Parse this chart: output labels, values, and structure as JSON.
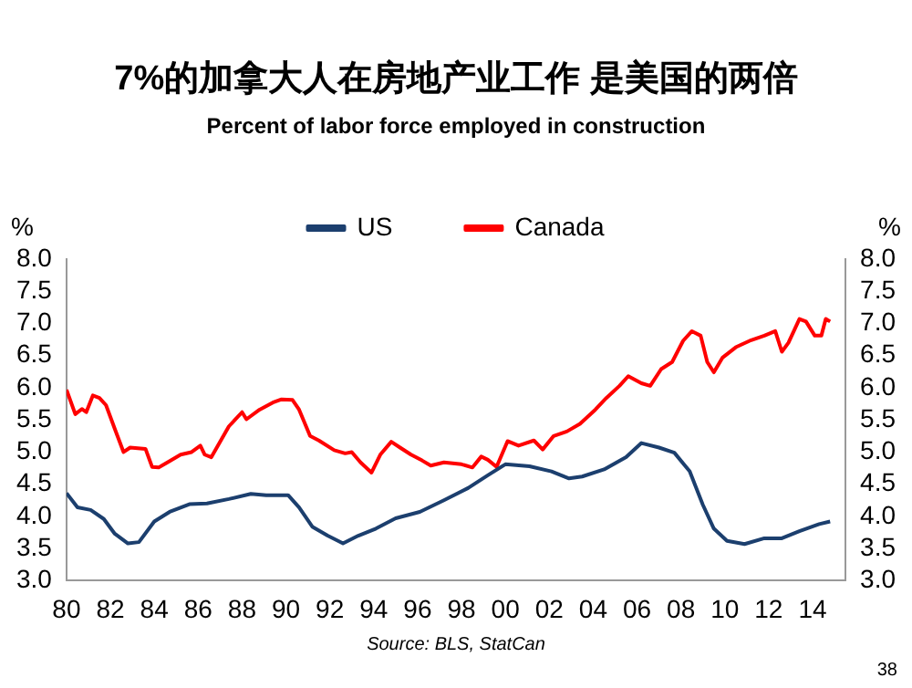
{
  "chart_data": {
    "type": "line",
    "title": "7%的加拿大人在房地产业工作 是美国的两倍",
    "subtitle": "Percent of labor force employed in construction",
    "ylabel": "%",
    "y2label": "%",
    "annotations": [
      "Source: BLS, StatCan",
      "38"
    ],
    "legend": "top",
    "marker": "none",
    "xlim": [
      1980,
      2015.5
    ],
    "xticks": [
      {
        "value": 1980,
        "label": "80"
      },
      {
        "value": 1982,
        "label": "82"
      },
      {
        "value": 1984,
        "label": "84"
      },
      {
        "value": 1986,
        "label": "86"
      },
      {
        "value": 1988,
        "label": "88"
      },
      {
        "value": 1990,
        "label": "90"
      },
      {
        "value": 1992,
        "label": "92"
      },
      {
        "value": 1994,
        "label": "94"
      },
      {
        "value": 1996,
        "label": "96"
      },
      {
        "value": 1998,
        "label": "98"
      },
      {
        "value": 2000,
        "label": "00"
      },
      {
        "value": 2002,
        "label": "02"
      },
      {
        "value": 2004,
        "label": "04"
      },
      {
        "value": 2006,
        "label": "06"
      },
      {
        "value": 2008,
        "label": "08"
      },
      {
        "value": 2010,
        "label": "10"
      },
      {
        "value": 2012,
        "label": "12"
      },
      {
        "value": 2014,
        "label": "14"
      }
    ],
    "ylim": [
      3,
      8
    ],
    "yticks": [
      {
        "value": 3,
        "label": "3.0"
      },
      {
        "value": 3.5,
        "label": "3.5"
      },
      {
        "value": 4,
        "label": "4.0"
      },
      {
        "value": 4.5,
        "label": "4.5"
      },
      {
        "value": 5,
        "label": "5.0"
      },
      {
        "value": 5.5,
        "label": "5.5"
      },
      {
        "value": 6,
        "label": "6.0"
      },
      {
        "value": 6.5,
        "label": "6.5"
      },
      {
        "value": 7,
        "label": "7.0"
      },
      {
        "value": 7.5,
        "label": "7.5"
      },
      {
        "value": 8,
        "label": "8.0"
      }
    ],
    "y2lim": [
      3,
      8
    ],
    "y2ticks": [
      {
        "value": 3,
        "label": "3.0"
      },
      {
        "value": 3.5,
        "label": "3.5"
      },
      {
        "value": 4,
        "label": "4.0"
      },
      {
        "value": 4.5,
        "label": "4.5"
      },
      {
        "value": 5,
        "label": "5.0"
      },
      {
        "value": 5.5,
        "label": "5.5"
      },
      {
        "value": 6,
        "label": "6.0"
      },
      {
        "value": 6.5,
        "label": "6.5"
      },
      {
        "value": 7,
        "label": "7.0"
      },
      {
        "value": 7.5,
        "label": "7.5"
      },
      {
        "value": 8,
        "label": "8.0"
      }
    ],
    "series": [
      {
        "name": "US",
        "color": "#1c3f6e",
        "x": [
          1980.0,
          1980.5,
          1981.1,
          1981.7,
          1982.2,
          1982.8,
          1983.3,
          1984.0,
          1984.7,
          1985.6,
          1986.4,
          1987.4,
          1988.4,
          1989.1,
          1990.1,
          1990.6,
          1991.2,
          1991.9,
          1992.6,
          1993.3,
          1994.1,
          1995.0,
          1996.1,
          1997.2,
          1998.3,
          1999.2,
          2000.0,
          2001.1,
          2002.1,
          2002.9,
          2003.5,
          2004.5,
          2005.5,
          2006.2,
          2007.0,
          2007.7,
          2008.4,
          2009.0,
          2009.5,
          2010.1,
          2010.9,
          2011.8,
          2012.6,
          2013.4,
          2014.3,
          2014.8
        ],
        "values": [
          4.36,
          4.14,
          4.1,
          3.96,
          3.73,
          3.58,
          3.6,
          3.92,
          4.07,
          4.19,
          4.2,
          4.27,
          4.35,
          4.33,
          4.33,
          4.14,
          3.84,
          3.7,
          3.58,
          3.7,
          3.81,
          3.97,
          4.07,
          4.25,
          4.44,
          4.64,
          4.81,
          4.78,
          4.7,
          4.59,
          4.62,
          4.73,
          4.92,
          5.14,
          5.07,
          4.99,
          4.7,
          4.18,
          3.81,
          3.62,
          3.57,
          3.66,
          3.66,
          3.77,
          3.88,
          3.92
        ]
      },
      {
        "name": "Canada",
        "color": "#ff0000",
        "x": [
          1980.0,
          1980.4,
          1980.7,
          1980.9,
          1981.2,
          1981.5,
          1981.8,
          1982.2,
          1982.6,
          1982.9,
          1983.6,
          1983.9,
          1984.2,
          1984.6,
          1985.2,
          1985.7,
          1986.1,
          1986.3,
          1986.6,
          1987.4,
          1988.0,
          1988.2,
          1988.8,
          1989.4,
          1989.8,
          1990.3,
          1990.6,
          1991.1,
          1991.5,
          1992.2,
          1992.7,
          1993.0,
          1993.4,
          1993.9,
          1994.3,
          1994.8,
          1995.2,
          1995.7,
          1996.2,
          1996.6,
          1997.2,
          1998.0,
          1998.5,
          1998.9,
          1999.2,
          1999.6,
          2000.1,
          2000.6,
          2001.3,
          2001.7,
          2002.2,
          2002.8,
          2003.4,
          2004.1,
          2004.6,
          2005.2,
          2005.6,
          2006.2,
          2006.6,
          2007.1,
          2007.6,
          2008.1,
          2008.5,
          2008.9,
          2009.2,
          2009.5,
          2009.9,
          2010.5,
          2011.2,
          2011.8,
          2012.3,
          2012.6,
          2012.9,
          2013.4,
          2013.7,
          2014.1,
          2014.4,
          2014.6,
          2014.8
        ],
        "values": [
          5.97,
          5.59,
          5.67,
          5.62,
          5.88,
          5.84,
          5.73,
          5.36,
          5.0,
          5.07,
          5.05,
          4.77,
          4.76,
          4.84,
          4.96,
          5.0,
          5.1,
          4.96,
          4.92,
          5.4,
          5.62,
          5.51,
          5.66,
          5.77,
          5.82,
          5.81,
          5.66,
          5.25,
          5.18,
          5.03,
          4.98,
          5.0,
          4.84,
          4.68,
          4.96,
          5.16,
          5.07,
          4.96,
          4.87,
          4.79,
          4.84,
          4.81,
          4.76,
          4.93,
          4.88,
          4.77,
          5.17,
          5.1,
          5.18,
          5.04,
          5.25,
          5.32,
          5.44,
          5.66,
          5.84,
          6.03,
          6.18,
          6.07,
          6.03,
          6.29,
          6.4,
          6.73,
          6.88,
          6.81,
          6.4,
          6.24,
          6.47,
          6.63,
          6.74,
          6.81,
          6.88,
          6.56,
          6.7,
          7.07,
          7.03,
          6.81,
          6.81,
          7.07,
          7.03
        ]
      }
    ]
  }
}
